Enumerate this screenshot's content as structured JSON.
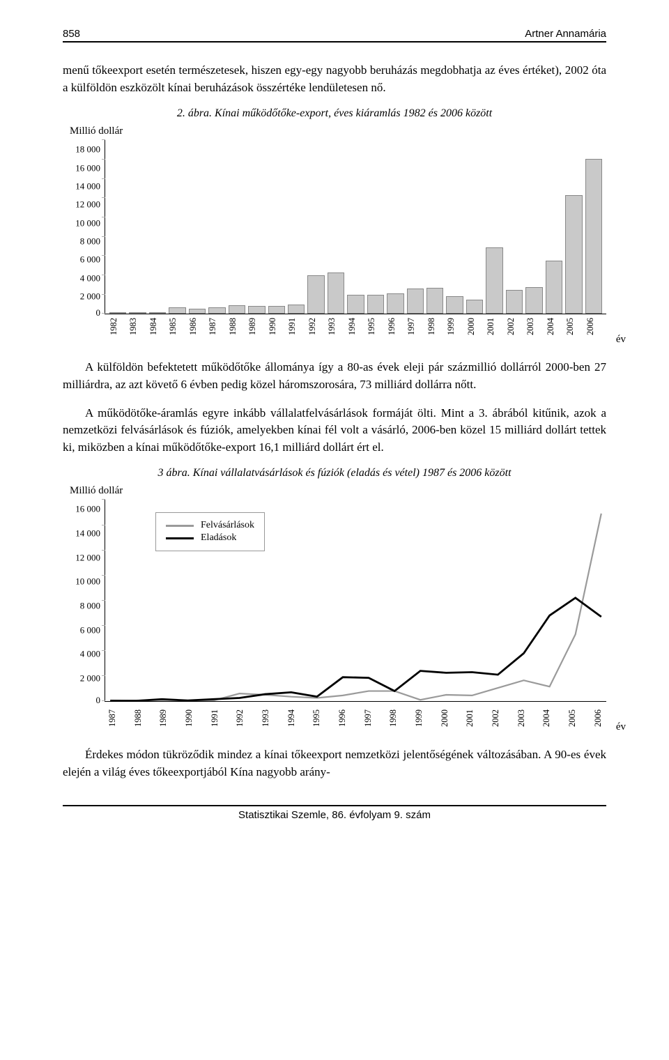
{
  "header": {
    "page_number": "858",
    "author": "Artner Annamária"
  },
  "paragraphs": {
    "p1": "menű tőkeexport esetén természetesek, hiszen egy-egy nagyobb beruházás megdobhatja az éves értéket), 2002 óta a külföldön eszközölt kínai beruházások összértéke lendületesen nő.",
    "p2a": "A külföldön befektetett működőtőke állománya így a 80-as évek eleji pár százmillió dollárról 2000-ben 27 milliárdra, az azt követő 6 évben pedig közel háromszorosára, 73 milliárd dollárra nőtt.",
    "p2b": "A működötőke-áramlás egyre inkább vállalatfelvásárlások formáját ölti. Mint a 3. ábrából kitűnik, azok a nemzetközi felvásárlások és fúziók, amelyekben kínai fél volt a vásárló, 2006-ben közel 15 milliárd dollárt tettek ki, miközben a kínai működőtőke-export 16,1 milliárd dollárt ért el.",
    "p3": "Érdekes módon tükröződik mindez a kínai tőkeexport nemzetközi jelentőségének változásában. A 90-es évek elején a világ éves tőkeexportjából Kína nagyobb arány-"
  },
  "chart2": {
    "title": "2. ábra. Kínai működőtőke-export, éves kiáramlás 1982 és 2006 között",
    "y_axis_label": "Millió dollár",
    "x_axis_unit": "év",
    "type": "bar",
    "ymax": 18000,
    "ytick_step": 2000,
    "yticks": [
      "18 000",
      "16 000",
      "14 000",
      "12 000",
      "10 000",
      "8 000",
      "6 000",
      "4 000",
      "2 000",
      "0"
    ],
    "categories": [
      "1982",
      "1983",
      "1984",
      "1985",
      "1986",
      "1987",
      "1988",
      "1989",
      "1990",
      "1991",
      "1992",
      "1993",
      "1994",
      "1995",
      "1996",
      "1997",
      "1998",
      "1999",
      "2000",
      "2001",
      "2002",
      "2003",
      "2004",
      "2005",
      "2006"
    ],
    "values": [
      50,
      100,
      150,
      650,
      500,
      700,
      900,
      800,
      850,
      950,
      4000,
      4300,
      2000,
      2000,
      2100,
      2600,
      2700,
      1800,
      1500,
      6900,
      2500,
      2800,
      5500,
      12300,
      16100
    ],
    "bar_fill": "#c9c9c9",
    "bar_stroke": "#888888",
    "background": "#ffffff",
    "axis_color": "#000000"
  },
  "chart3": {
    "title": "3 ábra. Kínai vállalatvásárlások és fúziók (eladás és vétel) 1987 és 2006 között",
    "y_axis_label": "Millió dollár",
    "x_axis_unit": "év",
    "type": "line",
    "ymax": 16000,
    "ytick_step": 2000,
    "yticks": [
      "16 000",
      "14 000",
      "12 000",
      "10 000",
      "8 000",
      "6 000",
      "4 000",
      "2 000",
      "0"
    ],
    "categories": [
      "1987",
      "1988",
      "1989",
      "1990",
      "1991",
      "1992",
      "1993",
      "1994",
      "1995",
      "1996",
      "1997",
      "1998",
      "1999",
      "2000",
      "2001",
      "2002",
      "2003",
      "2004",
      "2005",
      "2006"
    ],
    "series": [
      {
        "label": "Felvásárlások",
        "color": "#9a9a9a",
        "line_width": 2.2,
        "values": [
          0,
          50,
          80,
          50,
          50,
          600,
          500,
          350,
          250,
          450,
          800,
          800,
          100,
          500,
          450,
          1050,
          1650,
          1150,
          5300,
          14900
        ]
      },
      {
        "label": "Eladások",
        "color": "#000000",
        "line_width": 2.8,
        "values": [
          30,
          20,
          150,
          50,
          150,
          250,
          550,
          700,
          350,
          1900,
          1850,
          800,
          2400,
          2250,
          2300,
          2100,
          3800,
          6800,
          8200,
          6700
        ]
      }
    ],
    "background": "#ffffff",
    "axis_color": "#000000",
    "legend_position": "top-left-inside"
  },
  "footer": {
    "text": "Statisztikai Szemle, 86. évfolyam 9. szám"
  }
}
